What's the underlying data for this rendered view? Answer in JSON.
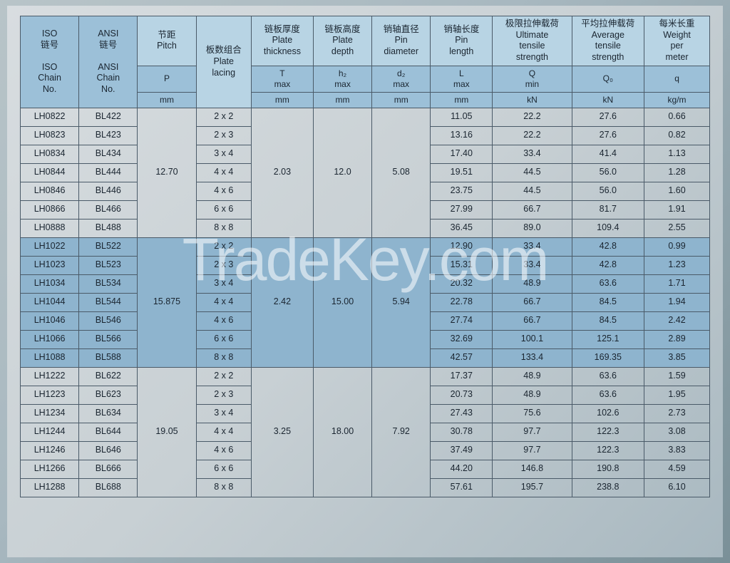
{
  "watermark": "TradeKey.com",
  "header": {
    "iso_cn": "ISO\n链号",
    "ansi_cn": "ANSI\n链号",
    "iso_en": "ISO\nChain\nNo.",
    "ansi_en": "ANSI\nChain\nNo.",
    "pitch_cn": "节距",
    "pitch_en": "Pitch",
    "lacing_cn": "板数组合",
    "lacing_en": "Plate\nlacing",
    "thick_cn": "链板厚度",
    "thick_en": "Plate\nthickness",
    "depth_cn": "链板高度",
    "depth_en": "Plate\ndepth",
    "pindia_cn": "销轴直径",
    "pindia_en": "Pin\ndiameter",
    "pinlen_cn": "销轴长度",
    "pinlen_en": "Pin\nlength",
    "ult_cn": "极限拉伸载荷",
    "ult_en": "Ultimate\ntensile\nstrength",
    "avg_cn": "平均拉伸载荷",
    "avg_en": "Average\ntensile\nstrength",
    "wpm_cn": "每米长重",
    "wpm_en": "Weight\nper\nmeter",
    "sym_P": "P",
    "sym_T": "T\nmax",
    "sym_h2": "h₂\nmax",
    "sym_d2": "d₂\nmax",
    "sym_L": "L\nmax",
    "sym_Q": "Q\nmin",
    "sym_Q0": "Q₀",
    "sym_q": "q",
    "u_mm": "mm",
    "u_kN": "kN",
    "u_kgm": "kg/m"
  },
  "groups": [
    {
      "pitch": "12.70",
      "thickness": "2.03",
      "depth": "12.0",
      "pindia": "5.08",
      "shade": false,
      "rows": [
        {
          "iso": "LH0822",
          "ansi": "BL422",
          "lac": "2 x 2",
          "len": "11.05",
          "ult": "22.2",
          "avg": "27.6",
          "wpm": "0.66"
        },
        {
          "iso": "LH0823",
          "ansi": "BL423",
          "lac": "2 x 3",
          "len": "13.16",
          "ult": "22.2",
          "avg": "27.6",
          "wpm": "0.82"
        },
        {
          "iso": "LH0834",
          "ansi": "BL434",
          "lac": "3 x 4",
          "len": "17.40",
          "ult": "33.4",
          "avg": "41.4",
          "wpm": "1.13"
        },
        {
          "iso": "LH0844",
          "ansi": "BL444",
          "lac": "4 x 4",
          "len": "19.51",
          "ult": "44.5",
          "avg": "56.0",
          "wpm": "1.28"
        },
        {
          "iso": "LH0846",
          "ansi": "BL446",
          "lac": "4 x 6",
          "len": "23.75",
          "ult": "44.5",
          "avg": "56.0",
          "wpm": "1.60"
        },
        {
          "iso": "LH0866",
          "ansi": "BL466",
          "lac": "6 x 6",
          "len": "27.99",
          "ult": "66.7",
          "avg": "81.7",
          "wpm": "1.91"
        },
        {
          "iso": "LH0888",
          "ansi": "BL488",
          "lac": "8 x 8",
          "len": "36.45",
          "ult": "89.0",
          "avg": "109.4",
          "wpm": "2.55"
        }
      ]
    },
    {
      "pitch": "15.875",
      "thickness": "2.42",
      "depth": "15.00",
      "pindia": "5.94",
      "shade": true,
      "rows": [
        {
          "iso": "LH1022",
          "ansi": "BL522",
          "lac": "2 x 2",
          "len": "12.90",
          "ult": "33.4",
          "avg": "42.8",
          "wpm": "0.99"
        },
        {
          "iso": "LH1023",
          "ansi": "BL523",
          "lac": "2 x 3",
          "len": "15.31",
          "ult": "33.4",
          "avg": "42.8",
          "wpm": "1.23"
        },
        {
          "iso": "LH1034",
          "ansi": "BL534",
          "lac": "3 x 4",
          "len": "20.32",
          "ult": "48.9",
          "avg": "63.6",
          "wpm": "1.71"
        },
        {
          "iso": "LH1044",
          "ansi": "BL544",
          "lac": "4 x 4",
          "len": "22.78",
          "ult": "66.7",
          "avg": "84.5",
          "wpm": "1.94"
        },
        {
          "iso": "LH1046",
          "ansi": "BL546",
          "lac": "4 x 6",
          "len": "27.74",
          "ult": "66.7",
          "avg": "84.5",
          "wpm": "2.42"
        },
        {
          "iso": "LH1066",
          "ansi": "BL566",
          "lac": "6 x 6",
          "len": "32.69",
          "ult": "100.1",
          "avg": "125.1",
          "wpm": "2.89"
        },
        {
          "iso": "LH1088",
          "ansi": "BL588",
          "lac": "8 x 8",
          "len": "42.57",
          "ult": "133.4",
          "avg": "169.35",
          "wpm": "3.85"
        }
      ]
    },
    {
      "pitch": "19.05",
      "thickness": "3.25",
      "depth": "18.00",
      "pindia": "7.92",
      "shade": false,
      "rows": [
        {
          "iso": "LH1222",
          "ansi": "BL622",
          "lac": "2 x 2",
          "len": "17.37",
          "ult": "48.9",
          "avg": "63.6",
          "wpm": "1.59"
        },
        {
          "iso": "LH1223",
          "ansi": "BL623",
          "lac": "2 x 3",
          "len": "20.73",
          "ult": "48.9",
          "avg": "63.6",
          "wpm": "1.95"
        },
        {
          "iso": "LH1234",
          "ansi": "BL634",
          "lac": "3 x 4",
          "len": "27.43",
          "ult": "75.6",
          "avg": "102.6",
          "wpm": "2.73"
        },
        {
          "iso": "LH1244",
          "ansi": "BL644",
          "lac": "4 x 4",
          "len": "30.78",
          "ult": "97.7",
          "avg": "122.3",
          "wpm": "3.08"
        },
        {
          "iso": "LH1246",
          "ansi": "BL646",
          "lac": "4 x 6",
          "len": "37.49",
          "ult": "97.7",
          "avg": "122.3",
          "wpm": "3.83"
        },
        {
          "iso": "LH1266",
          "ansi": "BL666",
          "lac": "6 x 6",
          "len": "44.20",
          "ult": "146.8",
          "avg": "190.8",
          "wpm": "4.59"
        },
        {
          "iso": "LH1288",
          "ansi": "BL688",
          "lac": "8 x 8",
          "len": "57.61",
          "ult": "195.7",
          "avg": "238.8",
          "wpm": "6.10"
        }
      ]
    }
  ]
}
